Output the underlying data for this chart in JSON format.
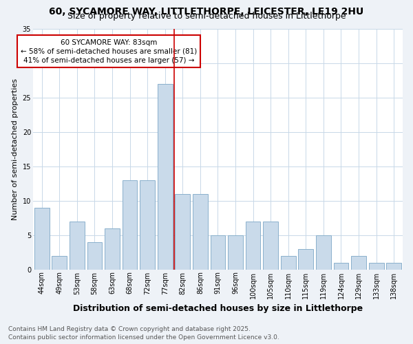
{
  "title": "60, SYCAMORE WAY, LITTLETHORPE, LEICESTER, LE19 2HU",
  "subtitle": "Size of property relative to semi-detached houses in Littlethorpe",
  "xlabel": "Distribution of semi-detached houses by size in Littlethorpe",
  "ylabel": "Number of semi-detached properties",
  "footnote1": "Contains HM Land Registry data © Crown copyright and database right 2025.",
  "footnote2": "Contains public sector information licensed under the Open Government Licence v3.0.",
  "bar_labels": [
    "44sqm",
    "49sqm",
    "53sqm",
    "58sqm",
    "63sqm",
    "68sqm",
    "72sqm",
    "77sqm",
    "82sqm",
    "86sqm",
    "91sqm",
    "96sqm",
    "100sqm",
    "105sqm",
    "110sqm",
    "115sqm",
    "119sqm",
    "124sqm",
    "129sqm",
    "133sqm",
    "138sqm"
  ],
  "bar_values": [
    9,
    2,
    7,
    4,
    6,
    13,
    13,
    27,
    11,
    11,
    5,
    5,
    7,
    7,
    2,
    3,
    5,
    1,
    2,
    1,
    1
  ],
  "bar_color": "#c9daea",
  "bar_edge_color": "#8ab0cc",
  "vline_index": 8,
  "vline_color": "#cc0000",
  "annotation_title": "60 SYCAMORE WAY: 83sqm",
  "annotation_line1": "← 58% of semi-detached houses are smaller (81)",
  "annotation_line2": "41% of semi-detached houses are larger (57) →",
  "annotation_box_color": "#cc0000",
  "annotation_text_color": "#000000",
  "ylim": [
    0,
    35
  ],
  "yticks": [
    0,
    5,
    10,
    15,
    20,
    25,
    30,
    35
  ],
  "bg_color": "#eef2f7",
  "plot_bg_color": "#ffffff",
  "grid_color": "#c8d8e8",
  "title_fontsize": 10,
  "subtitle_fontsize": 9,
  "xlabel_fontsize": 9,
  "ylabel_fontsize": 8,
  "tick_fontsize": 7,
  "annotation_fontsize": 7.5,
  "footnote_fontsize": 6.5
}
